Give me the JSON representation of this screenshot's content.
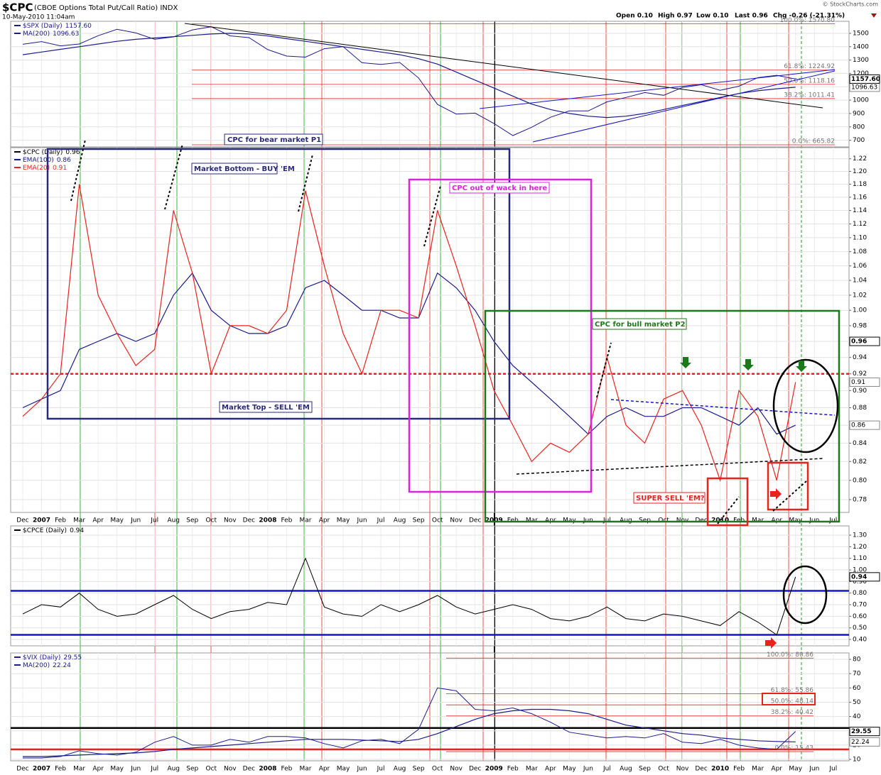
{
  "header": {
    "symbol": "$CPC",
    "name": "(CBOE Options Total Put/Call Ratio) INDX",
    "date": "10-May-2010 11:04am",
    "credit": "© StockCharts.com",
    "stats": [
      "Open 0.10",
      "High 0.97",
      "Low 0.10",
      "Last 0.96",
      "Chg -0.26 (-21.31%)"
    ]
  },
  "chart_data": [
    {
      "type": "line",
      "title": "$SPX (Daily)",
      "last": {
        "value": 1157.6,
        "label": "1157.60"
      },
      "color": "#1c1c8a",
      "values": [
        1418,
        1438,
        1406,
        1420,
        1482,
        1530,
        1503,
        1455,
        1473,
        1526,
        1549,
        1481,
        1468,
        1378,
        1330,
        1322,
        1385,
        1400,
        1280,
        1267,
        1282,
        1166,
        968,
        896,
        903,
        825,
        735,
        797,
        872,
        919,
        919,
        987,
        1020,
        1057,
        1036,
        1095,
        1115,
        1074,
        1104,
        1169,
        1186,
        1157.6,
        null,
        null
      ],
      "series": [
        {
          "name": "MA(200)",
          "color": "#1c1c8a",
          "last": 1096.63,
          "values": [
            1340,
            1360,
            1380,
            1400,
            1420,
            1440,
            1455,
            1465,
            1475,
            1485,
            1495,
            1500,
            1495,
            1480,
            1460,
            1440,
            1420,
            1400,
            1380,
            1360,
            1340,
            1310,
            1270,
            1210,
            1150,
            1090,
            1030,
            970,
            930,
            900,
            880,
            870,
            880,
            900,
            930,
            960,
            990,
            1020,
            1050,
            1070,
            1085,
            1096.63,
            null,
            null
          ]
        }
      ],
      "ylim": [
        650,
        1590
      ],
      "yticks": [
        700,
        800,
        900,
        1000,
        1100,
        1200,
        1300,
        1400,
        1500
      ],
      "grid": true,
      "fib_levels": [
        {
          "value": 1570.8,
          "label": "100.0%: 1570.80"
        },
        {
          "value": 1224.92,
          "label": "61.8%: 1224.92"
        },
        {
          "value": 1118.16,
          "label": "50.0%: 1118.16"
        },
        {
          "value": 1011.41,
          "label": "38.2%: 1011.41"
        },
        {
          "value": 665.82,
          "label": "0.0%: 665.82"
        }
      ]
    },
    {
      "type": "line",
      "title": "$CPC (Daily)",
      "last": 0.96,
      "log_scale": true,
      "categories": [
        "Dec",
        "2007",
        "Feb",
        "Mar",
        "Apr",
        "May",
        "Jun",
        "Jul",
        "Aug",
        "Sep",
        "Oct",
        "Nov",
        "Dec",
        "2008",
        "Feb",
        "Mar",
        "Apr",
        "May",
        "Jun",
        "Jul",
        "Aug",
        "Sep",
        "Oct",
        "Nov",
        "Dec",
        "2009",
        "Feb",
        "Mar",
        "Apr",
        "May",
        "Jun",
        "Jul",
        "Aug",
        "Sep",
        "Oct",
        "Nov",
        "Dec",
        "2010",
        "Feb",
        "Mar",
        "Apr",
        "May",
        "Jun",
        "Jul"
      ],
      "series": [
        {
          "name": "EMA(100)",
          "color": "#1c1c8a",
          "last": 0.86,
          "values": [
            0.88,
            0.89,
            0.9,
            0.95,
            0.96,
            0.97,
            0.96,
            0.97,
            1.02,
            1.05,
            1,
            0.98,
            0.97,
            0.97,
            0.98,
            1.03,
            1.04,
            1.02,
            1,
            1,
            0.99,
            0.99,
            1.05,
            1.03,
            1,
            0.96,
            0.93,
            0.91,
            0.89,
            0.87,
            0.85,
            0.87,
            0.88,
            0.87,
            0.87,
            0.88,
            0.88,
            0.87,
            0.86,
            0.88,
            0.85,
            0.86,
            null,
            null
          ]
        },
        {
          "name": "EMA(20)",
          "color": "#e8231e",
          "last": 0.91,
          "values": [
            0.87,
            0.89,
            0.92,
            1.18,
            1.02,
            0.97,
            0.93,
            0.95,
            1.14,
            1.05,
            0.92,
            0.98,
            0.98,
            0.97,
            1,
            1.17,
            1.06,
            0.97,
            0.92,
            1,
            1,
            0.99,
            1.14,
            1.06,
            0.98,
            0.9,
            0.86,
            0.82,
            0.84,
            0.83,
            0.85,
            0.94,
            0.86,
            0.84,
            0.89,
            0.9,
            0.86,
            0.8,
            0.9,
            0.87,
            0.8,
            0.91,
            null,
            null
          ]
        }
      ],
      "ylim": [
        0.767,
        1.238
      ],
      "yticks": [
        0.78,
        {
          "value": 0.8,
          "label": "0.80"
        },
        0.82,
        0.84,
        0.86,
        0.88,
        {
          "value": 0.9,
          "label": "0.90"
        },
        0.92,
        0.94,
        0.96,
        0.98,
        {
          "value": 1,
          "label": "1.00"
        },
        1.02,
        1.04,
        1.06,
        1.08,
        {
          "value": 1.1,
          "label": "1.10"
        },
        1.12,
        1.14,
        1.16,
        1.18,
        {
          "value": 1.2,
          "label": "1.20"
        },
        1.22
      ],
      "grid": true,
      "hlines": [
        {
          "value": 0.92,
          "color": "#e8231e",
          "dashed": true
        }
      ],
      "annotations": [
        "CPC for bear market P1",
        "Market Bottom - BUY 'EM",
        "Market Top - SELL 'EM",
        "CPC out of wack in here",
        "CPC for bull market P2",
        "SUPER SELL 'EM?"
      ]
    },
    {
      "type": "line",
      "title": "$CPCE (Daily)",
      "last": 0.94,
      "color": "#000000",
      "values": [
        0.62,
        0.7,
        0.68,
        0.8,
        0.66,
        0.6,
        0.62,
        0.7,
        0.78,
        0.66,
        0.58,
        0.64,
        0.66,
        0.72,
        0.7,
        1.1,
        0.68,
        0.62,
        0.6,
        0.7,
        0.64,
        0.7,
        0.78,
        0.68,
        0.62,
        0.66,
        0.7,
        0.66,
        0.58,
        0.56,
        0.6,
        0.68,
        0.58,
        0.56,
        0.62,
        0.6,
        0.56,
        0.52,
        0.64,
        0.55,
        0.44,
        0.94,
        null,
        null
      ],
      "ylim": [
        0.345,
        1.38
      ],
      "yticks": [
        {
          "value": 0.4,
          "label": "0.40"
        },
        {
          "value": 0.5,
          "label": "0.50"
        },
        {
          "value": 0.6,
          "label": "0.60"
        },
        {
          "value": 0.7,
          "label": "0.70"
        },
        {
          "value": 0.8,
          "label": "0.80"
        },
        {
          "value": 0.9,
          "label": "0.90"
        },
        {
          "value": 1,
          "label": "1.00"
        },
        {
          "value": 1.1,
          "label": "1.10"
        },
        {
          "value": 1.2,
          "label": "1.20"
        },
        {
          "value": 1.3,
          "label": "1.30"
        }
      ],
      "grid": true,
      "hlines": [
        {
          "value": 0.82,
          "color": "#1414c8",
          "dashed": false
        },
        {
          "value": 0.44,
          "color": "#1414c8",
          "dashed": false
        }
      ]
    },
    {
      "type": "line",
      "title": "$VIX (Daily)",
      "last": 29.55,
      "color": "#1c1c8a",
      "categories": [
        "Dec",
        "2007",
        "Feb",
        "Mar",
        "Apr",
        "May",
        "Jun",
        "Jul",
        "Aug",
        "Sep",
        "Oct",
        "Nov",
        "Dec",
        "2008",
        "Feb",
        "Mar",
        "Apr",
        "May",
        "Jun",
        "Jul",
        "Aug",
        "Sep",
        "Oct",
        "Nov",
        "Dec",
        "2009",
        "Feb",
        "Mar",
        "Apr",
        "May",
        "Jun",
        "Jul",
        "Aug",
        "Sep",
        "Oct",
        "Nov",
        "Dec",
        "2010",
        "Feb",
        "Mar",
        "Apr",
        "May",
        "Jun",
        "Jul"
      ],
      "values": [
        11,
        11,
        12,
        16,
        14,
        13,
        15,
        22,
        26,
        20,
        20,
        24,
        22,
        26,
        26,
        25,
        21,
        18,
        23,
        24,
        21,
        31,
        60,
        58,
        45,
        44,
        46,
        42,
        36,
        29,
        27,
        25,
        26,
        25,
        28,
        22,
        21,
        24,
        20,
        18,
        17,
        29.55,
        null,
        null
      ],
      "series": [
        {
          "name": "MA(200)",
          "color": "#1c1c8a",
          "last": 22.24,
          "values": [
            12,
            12,
            12.5,
            13,
            13.5,
            14,
            14.5,
            15.5,
            17,
            18,
            19,
            20,
            21,
            22,
            23,
            24,
            24,
            24,
            23.5,
            23,
            22.5,
            24,
            28,
            33,
            38,
            42,
            44,
            45,
            45,
            44,
            42,
            38,
            34,
            32,
            30,
            28,
            27,
            25,
            24,
            23,
            22.5,
            22.24,
            null,
            null
          ]
        }
      ],
      "ylim": [
        9,
        84.5
      ],
      "yticks": [
        10,
        20,
        30,
        40,
        50,
        60,
        70,
        80
      ],
      "grid": true,
      "hlines": [
        {
          "value": 32,
          "color": "#000000",
          "dashed": false
        },
        {
          "value": 17,
          "color": "#e8231e",
          "dashed": false
        }
      ],
      "fib_levels": [
        {
          "value": 80.86,
          "label": "100.0%: 80.86"
        },
        {
          "value": 55.86,
          "label": "61.8%: 55.86"
        },
        {
          "value": 48.14,
          "label": "50.0%: 48.14"
        },
        {
          "value": 40.42,
          "label": "38.2%: 40.42"
        },
        {
          "value": 15.43,
          "label": "0.0%: 15.43"
        }
      ]
    }
  ]
}
